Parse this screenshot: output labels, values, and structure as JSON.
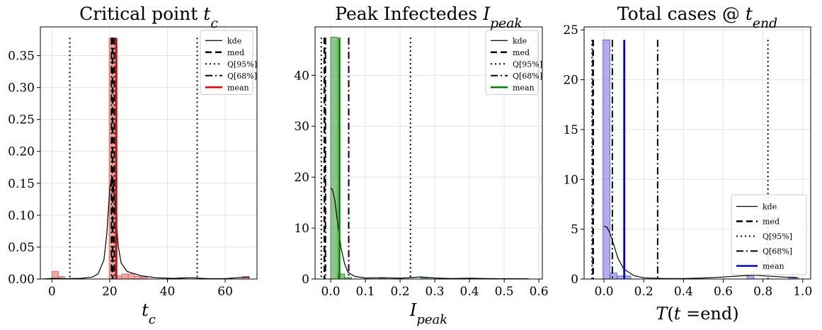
{
  "chart_data": [
    {
      "type": "histogram",
      "title": "Critical point t_c",
      "xlabel": "t_c",
      "xlim": [
        -4,
        71
      ],
      "ylim": [
        0,
        0.395
      ],
      "xticks": [
        0,
        20,
        40,
        60
      ],
      "yticks": [
        0.0,
        0.05,
        0.1,
        0.15,
        0.2,
        0.25,
        0.3,
        0.35
      ],
      "ytick_labels": [
        "0.00",
        "0.05",
        "0.10",
        "0.15",
        "0.20",
        "0.25",
        "0.30",
        "0.35"
      ],
      "hist_color": "#f08080",
      "hist_edge": "#c06060",
      "hist_bins": [
        {
          "x0": 0,
          "x1": 2.2,
          "h": 0.012
        },
        {
          "x0": 2.2,
          "x1": 4.4,
          "h": 0.004
        },
        {
          "x0": 19.8,
          "x1": 22.0,
          "h": 0.378
        },
        {
          "x0": 22.0,
          "x1": 24.2,
          "h": 0.005
        },
        {
          "x0": 24.2,
          "x1": 26.4,
          "h": 0.008
        },
        {
          "x0": 26.4,
          "x1": 28.6,
          "h": 0.008
        },
        {
          "x0": 28.6,
          "x1": 30.8,
          "h": 0.004
        },
        {
          "x0": 30.8,
          "x1": 33.0,
          "h": 0.003
        },
        {
          "x0": 44.0,
          "x1": 46.2,
          "h": 0.002
        },
        {
          "x0": 66.0,
          "x1": 68.2,
          "h": 0.004
        }
      ],
      "kde_points": [
        [
          -3,
          0
        ],
        [
          0,
          0.001
        ],
        [
          5,
          0.0005
        ],
        [
          10,
          0.001
        ],
        [
          14,
          0.003
        ],
        [
          16,
          0.008
        ],
        [
          18,
          0.03
        ],
        [
          19,
          0.07
        ],
        [
          20,
          0.14
        ],
        [
          20.7,
          0.16
        ],
        [
          21.5,
          0.14
        ],
        [
          22.3,
          0.09
        ],
        [
          23,
          0.05
        ],
        [
          24,
          0.025
        ],
        [
          26,
          0.012
        ],
        [
          28,
          0.009
        ],
        [
          31,
          0.005
        ],
        [
          36,
          0.002
        ],
        [
          42,
          0.001
        ],
        [
          48,
          0.002
        ],
        [
          54,
          0.0005
        ],
        [
          60,
          0.0005
        ],
        [
          64,
          0.002
        ],
        [
          68,
          0.003
        ],
        [
          68.5,
          0.0025
        ]
      ],
      "median": 21.0,
      "mean": 22.3,
      "q95": [
        6.2,
        50.3
      ],
      "q68": [
        20.6,
        21.6
      ],
      "vline_top": 0.378,
      "mean_color": "#e00000",
      "legend": [
        "kde",
        "med",
        "Q[95%]",
        "Q[68%]",
        "mean"
      ],
      "legend_position": "top-right"
    },
    {
      "type": "histogram",
      "title": "Peak Infectedes I_peak",
      "xlabel": "I_peak",
      "xlim": [
        -0.045,
        0.61
      ],
      "ylim": [
        0,
        49.5
      ],
      "xticks": [
        0.0,
        0.1,
        0.2,
        0.3,
        0.4,
        0.5,
        0.6
      ],
      "xtick_labels": [
        "0.0",
        "0.1",
        "0.2",
        "0.3",
        "0.4",
        "0.5",
        "0.6"
      ],
      "yticks": [
        0,
        10,
        20,
        30,
        40
      ],
      "ytick_labels": [
        "0",
        "10",
        "20",
        "30",
        "40"
      ],
      "hist_color": "#5cad5c",
      "hist_edge": "#2e7d2e",
      "hist_bins": [
        {
          "x0": 0.0,
          "x1": 0.02,
          "h": 47.5
        },
        {
          "x0": 0.02,
          "x1": 0.04,
          "h": 1.0
        },
        {
          "x0": 0.04,
          "x1": 0.06,
          "h": 0.3
        },
        {
          "x0": 0.14,
          "x1": 0.16,
          "h": 0.2
        },
        {
          "x0": 0.26,
          "x1": 0.28,
          "h": 0.3
        }
      ],
      "kde_points": [
        [
          0.0,
          17.8
        ],
        [
          0.005,
          17.6
        ],
        [
          0.012,
          15.5
        ],
        [
          0.02,
          11
        ],
        [
          0.03,
          6
        ],
        [
          0.04,
          3
        ],
        [
          0.05,
          1.3
        ],
        [
          0.07,
          0.5
        ],
        [
          0.1,
          0.2
        ],
        [
          0.15,
          0.25
        ],
        [
          0.2,
          0.15
        ],
        [
          0.26,
          0.4
        ],
        [
          0.3,
          0.2
        ],
        [
          0.35,
          0.1
        ],
        [
          0.4,
          0.15
        ],
        [
          0.45,
          0.08
        ],
        [
          0.5,
          0.05
        ],
        [
          0.57,
          0.05
        ]
      ],
      "median": -0.018,
      "mean": 0.025,
      "q95": [
        -0.027,
        0.23
      ],
      "q68": [
        -0.015,
        0.052
      ],
      "vline_top": 47.4,
      "mean_color": "#008000",
      "legend": [
        "kde",
        "med",
        "Q[95%]",
        "Q[68%]",
        "mean"
      ],
      "legend_position": "top-right"
    },
    {
      "type": "histogram",
      "title": "Total cases @ t_end",
      "xlabel": "T(t =end)",
      "xlim": [
        -0.1,
        1.04
      ],
      "ylim": [
        0,
        25.3
      ],
      "xticks": [
        0.0,
        0.2,
        0.4,
        0.6,
        0.8,
        1.0
      ],
      "xtick_labels": [
        "0.0",
        "0.2",
        "0.4",
        "0.6",
        "0.8",
        "1.0"
      ],
      "yticks": [
        0,
        5,
        10,
        15,
        20,
        25
      ],
      "ytick_labels": [
        "0",
        "5",
        "10",
        "15",
        "20",
        "25"
      ],
      "hist_color": "#8c8cf0",
      "hist_edge": "#5050c0",
      "hist_bins": [
        {
          "x0": -0.005,
          "x1": 0.03,
          "h": 24.0
        },
        {
          "x0": 0.03,
          "x1": 0.065,
          "h": 0.6
        },
        {
          "x0": 0.065,
          "x1": 0.1,
          "h": 0.3
        },
        {
          "x0": 0.1,
          "x1": 0.135,
          "h": 0.3
        },
        {
          "x0": 0.72,
          "x1": 0.755,
          "h": 0.5
        },
        {
          "x0": 0.93,
          "x1": 0.965,
          "h": 0.2
        }
      ],
      "kde_points": [
        [
          0.0,
          5.3
        ],
        [
          0.015,
          5.2
        ],
        [
          0.03,
          4.6
        ],
        [
          0.05,
          3.4
        ],
        [
          0.07,
          2.1
        ],
        [
          0.1,
          1.0
        ],
        [
          0.15,
          0.35
        ],
        [
          0.2,
          0.12
        ],
        [
          0.3,
          0.05
        ],
        [
          0.4,
          0.05
        ],
        [
          0.5,
          0.1
        ],
        [
          0.6,
          0.2
        ],
        [
          0.7,
          0.33
        ],
        [
          0.76,
          0.38
        ],
        [
          0.82,
          0.3
        ],
        [
          0.9,
          0.2
        ],
        [
          0.98,
          0.12
        ]
      ],
      "median": -0.055,
      "mean": 0.102,
      "q95": [
        -0.06,
        0.825
      ],
      "q68": [
        0.042,
        0.27
      ],
      "vline_top": 24.0,
      "mean_color": "#0000e0",
      "legend": [
        "kde",
        "med",
        "Q[95%]",
        "Q[68%]",
        "mean"
      ],
      "legend_position": "lower-right"
    }
  ]
}
